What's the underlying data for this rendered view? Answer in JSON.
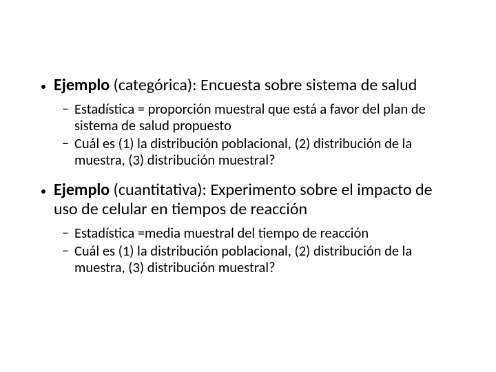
{
  "colors": {
    "background": "#ffffff",
    "text": "#000000",
    "bullet": "#000000"
  },
  "typography": {
    "main_fontsize_pt": 24,
    "sub_fontsize_pt": 20,
    "font_family": "Calibri"
  },
  "bullets": [
    {
      "label_bold": "Ejemplo",
      "label_rest": " (categórica): Encuesta sobre sistema de salud",
      "sub": [
        "Estadística = proporción muestral que está a favor  del plan de sistema de salud propuesto",
        "Cuál es (1) la distribución poblacional, (2) distribución de la muestra, (3) distribución muestral?"
      ]
    },
    {
      "label_bold": "Ejemplo",
      "label_rest": " (cuantitativa): Experimento sobre el impacto de uso de celular en tiempos de reacción",
      "sub": [
        "Estadística =media muestral del tiempo de reacción",
        "Cuál es (1) la distribución poblacional, (2) distribución de la muestra, (3) distribución muestral?"
      ]
    }
  ]
}
